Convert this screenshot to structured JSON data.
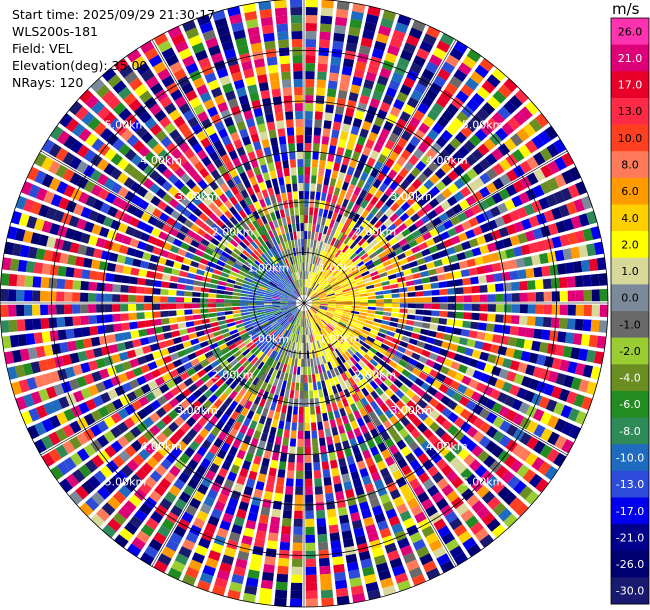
{
  "header": {
    "start_time": "Start time: 2025/09/29 21:30:17",
    "instrument": "WLS200s-181",
    "field": "Field: VEL",
    "elevation": "Elevation(deg): 35.00",
    "nrays": "NRays: 120"
  },
  "colorbar": {
    "unit": "m/s",
    "levels": [
      "26.0",
      "21.0",
      "17.0",
      "13.0",
      "10.0",
      "8.0",
      "6.0",
      "4.0",
      "2.0",
      "1.0",
      "0.0",
      "-1.0",
      "-2.0",
      "-4.0",
      "-6.0",
      "-8.0",
      "-10.0",
      "-13.0",
      "-17.0",
      "-21.0",
      "-26.0",
      "-30.0"
    ],
    "colors": [
      "#ff33b0",
      "#dd0077",
      "#e8002a",
      "#ff2a45",
      "#ff4020",
      "#ff7a5a",
      "#ff9a00",
      "#ffd000",
      "#ffff00",
      "#d8d89a",
      "#7a8a9a",
      "#6a6a6a",
      "#9acd32",
      "#6b8e23",
      "#228b22",
      "#2e8b57",
      "#1e6bbf",
      "#2b4bd8",
      "#0000ee",
      "#00008b",
      "#000070",
      "#191970"
    ]
  },
  "chart_data": {
    "type": "heatmap",
    "projection": "polar (PPI)",
    "field": "VEL",
    "unit": "m/s",
    "elevation_deg": 35.0,
    "n_rays": 120,
    "range_rings_km": [
      "1.00km",
      "2.00km",
      "3.00km",
      "4.00km",
      "5.00km"
    ],
    "range_rings_value_km": [
      1,
      2,
      3,
      4,
      5
    ],
    "ring_label_bearings_deg": [
      45,
      135,
      225,
      315
    ],
    "color_scale": {
      "bounds": [
        -30,
        -26,
        -21,
        -17,
        -13,
        -10,
        -8,
        -6,
        -4,
        -2,
        -1,
        0,
        1,
        2,
        4,
        6,
        8,
        10,
        13,
        17,
        21,
        26
      ],
      "colors": [
        "#191970",
        "#000070",
        "#00008b",
        "#0000ee",
        "#2b4bd8",
        "#1e6bbf",
        "#2e8b57",
        "#228b22",
        "#6b8e23",
        "#9acd32",
        "#6a6a6a",
        "#7a8a9a",
        "#d8d89a",
        "#ffff00",
        "#ffd000",
        "#ff9a00",
        "#ff7a5a",
        "#ff4020",
        "#ff2a45",
        "#e8002a",
        "#dd0077",
        "#ff33b0"
      ]
    },
    "near_field_pattern": {
      "east_sector_0_to_1.2km": "positive 2 to 8 m/s (yellow/orange)",
      "west_sector_0_to_1.2km": "negative -8 to -13 m/s (blue)",
      "north_south_near": "0 to -4 m/s (gray/olive)",
      "beyond_2km": "noise, mixed colors across full range"
    }
  }
}
